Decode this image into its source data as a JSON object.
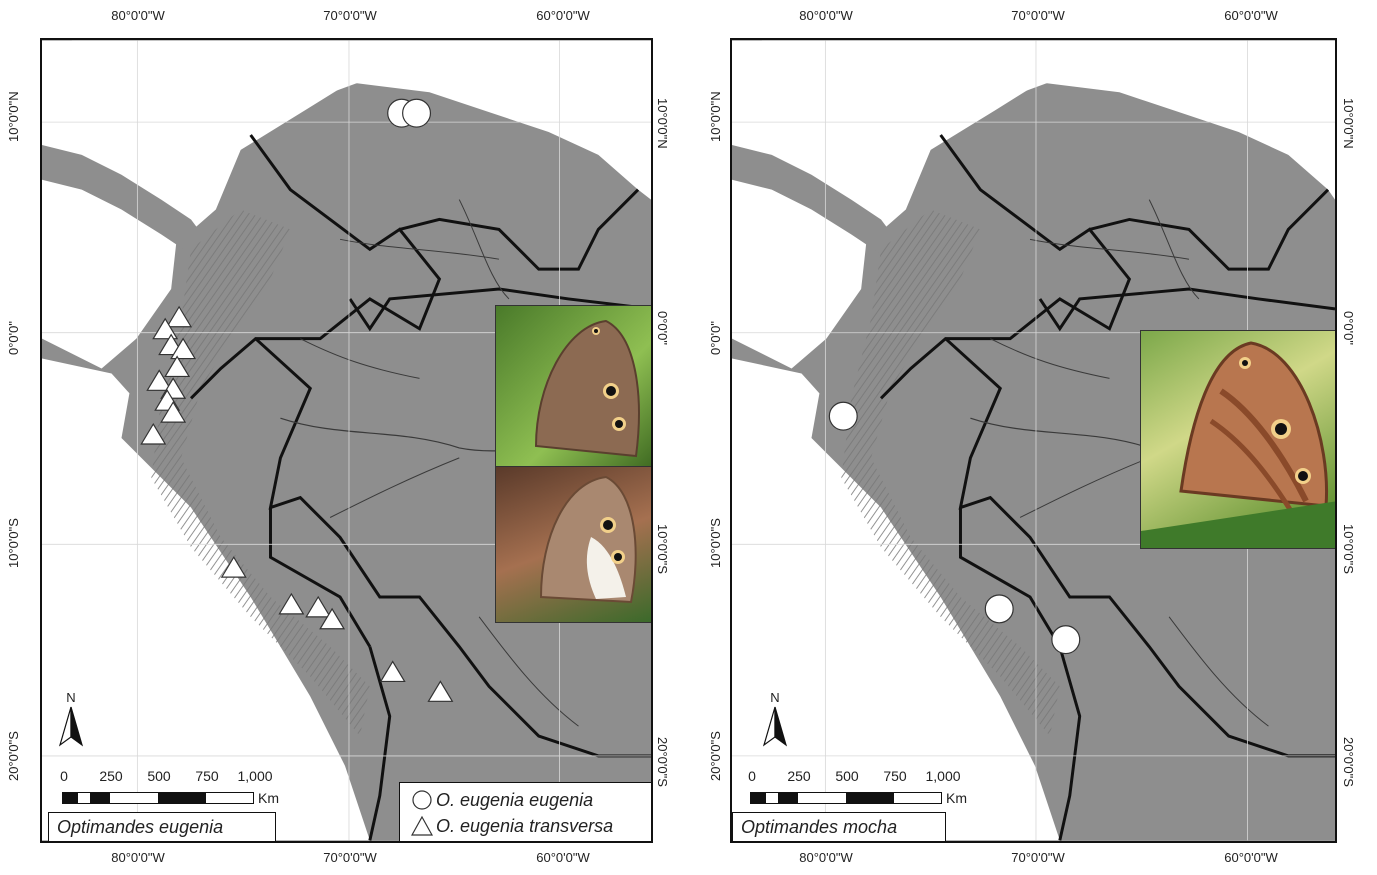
{
  "left_panel": {
    "title": "Optimandes eugenia",
    "ticks_top": [
      "80°0'0\"W",
      "70°0'0\"W",
      "60°0'0\"W"
    ],
    "ticks_bottom": [
      "80°0'0\"W",
      "70°0'0\"W",
      "60°0'0\"W"
    ],
    "ticks_left": [
      "10°0'0\"N",
      "0°0'0\"",
      "10°0'0\"S",
      "20°0'0\"S"
    ],
    "ticks_right": [
      "10°0'0\"N",
      "0°0'0\"",
      "10°0'0\"S",
      "20°0'0\"S"
    ],
    "north": "N",
    "scale": {
      "labels": [
        "0",
        "250",
        "500",
        "750",
        "1,000"
      ],
      "unit": "Km"
    },
    "legend": [
      {
        "symbol": "circle",
        "label": "O. eugenia eugenia"
      },
      {
        "symbol": "triangle",
        "label": "O. eugenia transversa"
      }
    ]
  },
  "right_panel": {
    "title": "Optimandes mocha",
    "ticks_top": [
      "80°0'0\"W",
      "70°0'0\"W",
      "60°0'0\"W"
    ],
    "ticks_bottom": [
      "80°0'0\"W",
      "70°0'0\"W",
      "60°0'0\"W"
    ],
    "ticks_left": [
      "10°0'0\"N",
      "0°0'0\"",
      "10°0'0\"S",
      "20°0'0\"S"
    ],
    "ticks_right": [
      "10°0'0\"N",
      "0°0'0\"",
      "10°0'0\"S",
      "20°0'0\"S"
    ],
    "north": "N",
    "scale": {
      "labels": [
        "0",
        "250",
        "500",
        "750",
        "1,000"
      ],
      "unit": "Km"
    }
  },
  "colors": {
    "land": "#8e8e8e",
    "sea": "#ffffff",
    "border": "#111111",
    "rivers": "#3a3a3a",
    "marker_fill": "#ffffff"
  },
  "occurrences": {
    "o_eugenia_eugenia": [
      [
        -67.9,
        10.3
      ],
      [
        -67.2,
        10.4
      ]
    ],
    "o_eugenia_transversa": [
      [
        -78.1,
        0.7
      ],
      [
        -78.6,
        0.3
      ],
      [
        -78.3,
        -0.5
      ],
      [
        -78.5,
        -1.2
      ],
      [
        -79.0,
        -2.3
      ],
      [
        -78.6,
        -2.8
      ],
      [
        -78.7,
        -3.6
      ],
      [
        -79.3,
        -4.7
      ],
      [
        -75.5,
        -11.3
      ],
      [
        -72.6,
        -12.9
      ],
      [
        -71.3,
        -13.0
      ],
      [
        -70.6,
        -13.6
      ],
      [
        -67.9,
        -16.3
      ],
      [
        -65.5,
        -17.2
      ]
    ],
    "o_mocha": [
      [
        -79.0,
        -3.9
      ],
      [
        -71.7,
        -13.0
      ],
      [
        -68.5,
        -14.5
      ]
    ]
  }
}
